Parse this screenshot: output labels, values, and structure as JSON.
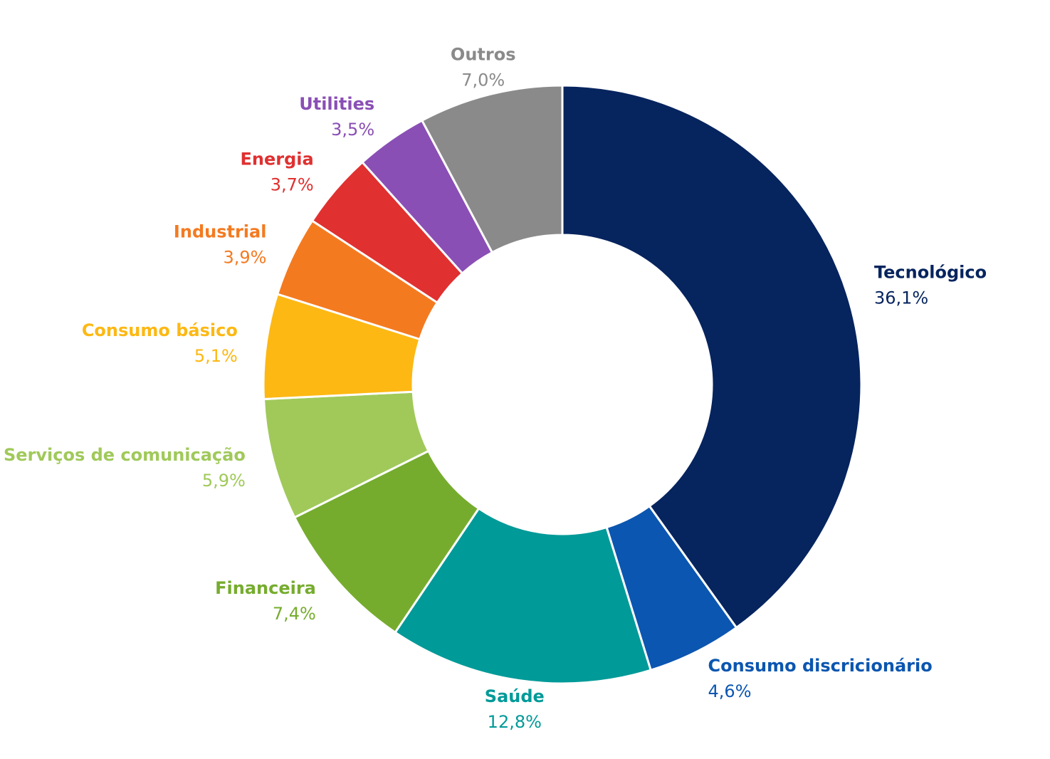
{
  "chart_data": {
    "type": "donut",
    "categories": [
      "Tecnológico",
      "Consumo discricionário",
      "Saúde",
      "Financeira",
      "Serviços de comunicação",
      "Consumo básico",
      "Industrial",
      "Energia",
      "Utilities",
      "Outros"
    ],
    "values": [
      36.1,
      4.6,
      12.8,
      7.4,
      5.9,
      5.1,
      3.9,
      3.7,
      3.5,
      7.0
    ],
    "value_labels": [
      "36,1%",
      "4,6%",
      "12,8%",
      "7,4%",
      "5,9%",
      "5,1%",
      "3,9%",
      "3,7%",
      "3,5%",
      "7,0%"
    ],
    "colors": [
      "#06245e",
      "#0b56b0",
      "#009a98",
      "#76ac2e",
      "#a0c95a",
      "#fdb813",
      "#f47a20",
      "#e03030",
      "#8a4fb5",
      "#8a8a8a"
    ]
  }
}
